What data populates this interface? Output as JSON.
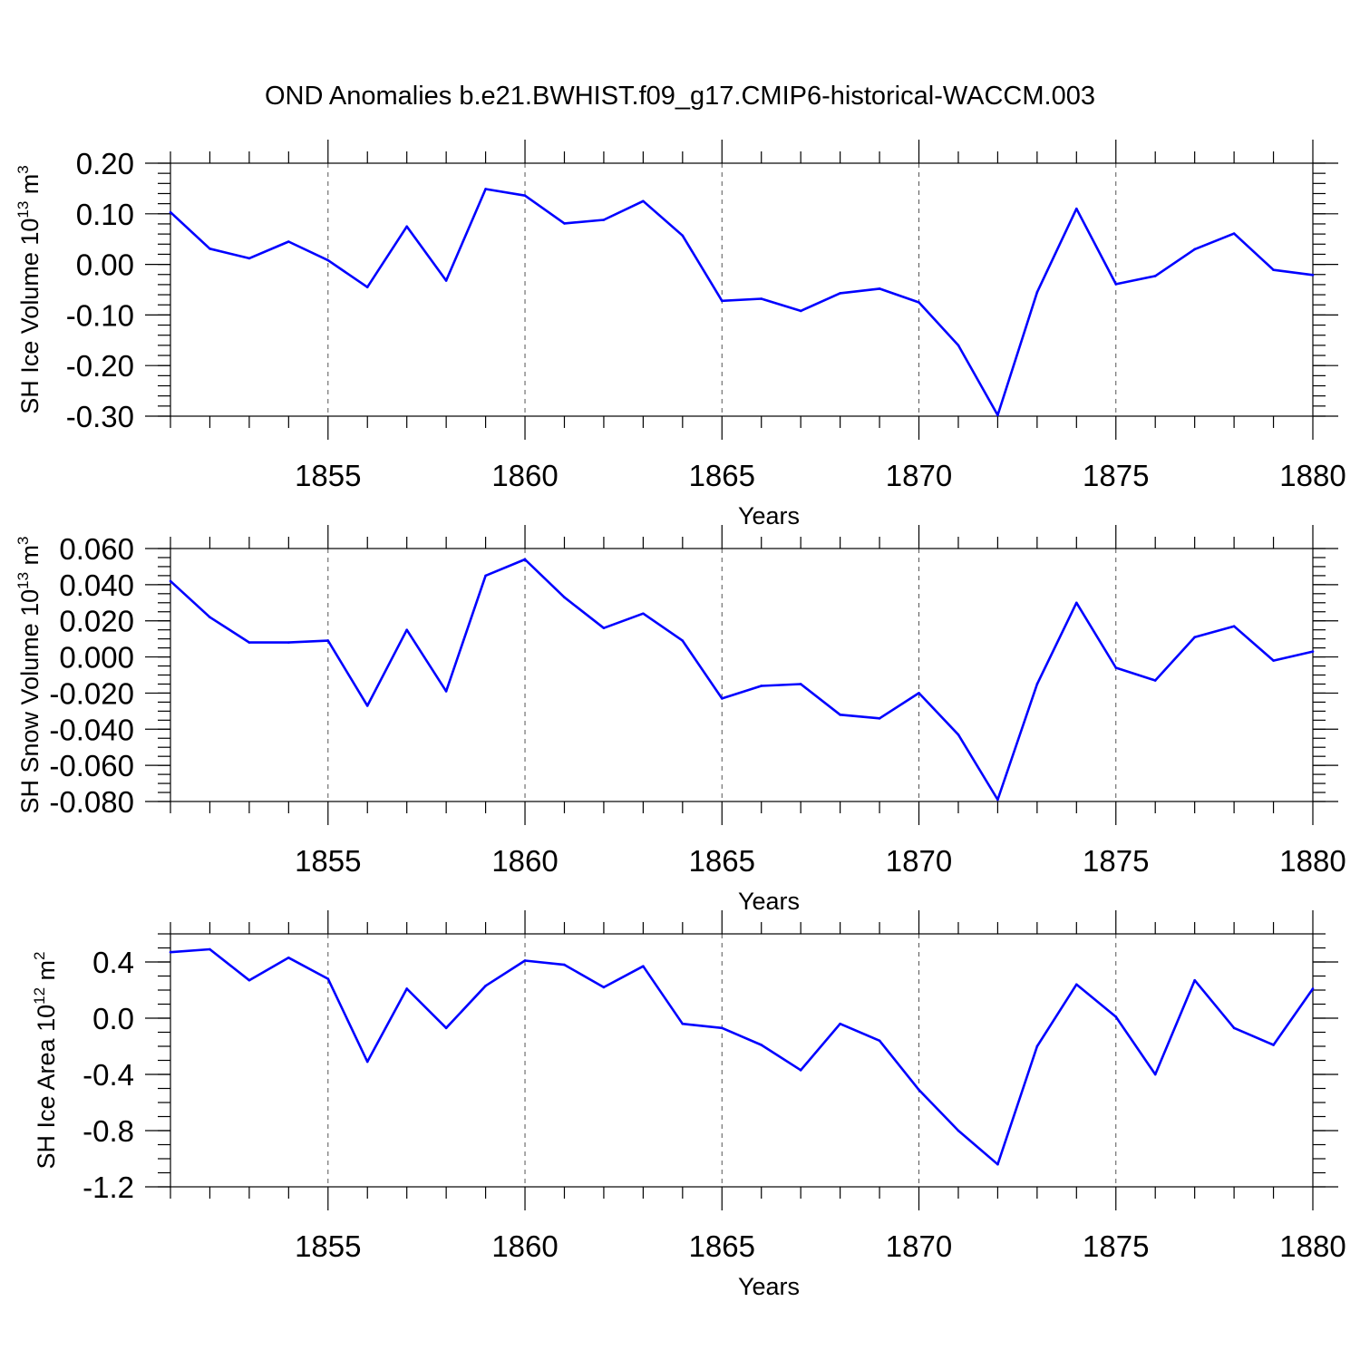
{
  "title": "OND Anomalies b.e21.BWHIST.f09_g17.CMIP6-historical-WACCM.003",
  "series_color": "#0000ff",
  "chart_data": [
    {
      "type": "line",
      "name": "ice-volume",
      "ylabel": {
        "main": "SH Ice Volume 10",
        "sup": "13",
        "unit": " m",
        "unit_sup": "3"
      },
      "xlabel": "Years",
      "xlim": [
        1851,
        1880
      ],
      "ylim": [
        -0.3,
        0.2
      ],
      "yticks": [
        0.2,
        0.1,
        0.0,
        -0.1,
        -0.2,
        -0.3
      ],
      "ytick_labels": [
        "0.20",
        "0.10",
        "0.00",
        "-0.10",
        "-0.20",
        "-0.30"
      ],
      "yminor_step": 0.02,
      "xticks": [
        1855,
        1860,
        1865,
        1870,
        1875,
        1880
      ],
      "xtick_labels": [
        "1855",
        "1860",
        "1865",
        "1870",
        "1875",
        "1880"
      ],
      "x": [
        1851,
        1852,
        1853,
        1854,
        1855,
        1856,
        1857,
        1858,
        1859,
        1860,
        1861,
        1862,
        1863,
        1864,
        1865,
        1866,
        1867,
        1868,
        1869,
        1870,
        1871,
        1872,
        1873,
        1874,
        1875,
        1876,
        1877,
        1878,
        1879,
        1880
      ],
      "values": [
        0.103,
        0.031,
        0.012,
        0.045,
        0.008,
        -0.045,
        0.075,
        -0.032,
        0.149,
        0.136,
        0.081,
        0.088,
        0.125,
        0.057,
        -0.072,
        -0.068,
        -0.092,
        -0.057,
        -0.048,
        -0.075,
        -0.16,
        -0.298,
        -0.055,
        0.11,
        -0.039,
        -0.023,
        0.03,
        0.061,
        -0.011,
        -0.021
      ]
    },
    {
      "type": "line",
      "name": "snow-volume",
      "ylabel": {
        "main": "SH Snow Volume 10",
        "sup": "13",
        "unit": " m",
        "unit_sup": "3"
      },
      "xlabel": "Years",
      "xlim": [
        1851,
        1880
      ],
      "ylim": [
        -0.08,
        0.06
      ],
      "yticks": [
        0.06,
        0.04,
        0.02,
        0.0,
        -0.02,
        -0.04,
        -0.06,
        -0.08
      ],
      "ytick_labels": [
        "0.060",
        "0.040",
        "0.020",
        "0.000",
        "-0.020",
        "-0.040",
        "-0.060",
        "-0.080"
      ],
      "yminor_step": 0.005,
      "xticks": [
        1855,
        1860,
        1865,
        1870,
        1875,
        1880
      ],
      "xtick_labels": [
        "1855",
        "1860",
        "1865",
        "1870",
        "1875",
        "1880"
      ],
      "x": [
        1851,
        1852,
        1853,
        1854,
        1855,
        1856,
        1857,
        1858,
        1859,
        1860,
        1861,
        1862,
        1863,
        1864,
        1865,
        1866,
        1867,
        1868,
        1869,
        1870,
        1871,
        1872,
        1873,
        1874,
        1875,
        1876,
        1877,
        1878,
        1879,
        1880
      ],
      "values": [
        0.042,
        0.022,
        0.008,
        0.008,
        0.009,
        -0.027,
        0.015,
        -0.019,
        0.045,
        0.054,
        0.033,
        0.016,
        0.024,
        0.009,
        -0.023,
        -0.016,
        -0.015,
        -0.032,
        -0.034,
        -0.02,
        -0.043,
        -0.079,
        -0.015,
        0.03,
        -0.006,
        -0.013,
        0.011,
        0.017,
        -0.002,
        0.003
      ]
    },
    {
      "type": "line",
      "name": "ice-area",
      "ylabel": {
        "main": "SH Ice Area 10",
        "sup": "12",
        "unit": " m",
        "unit_sup": "2"
      },
      "xlabel": "Years",
      "xlim": [
        1851,
        1880
      ],
      "ylim": [
        -1.2,
        0.6
      ],
      "yticks": [
        0.4,
        0.0,
        -0.4,
        -0.8,
        -1.2
      ],
      "ytick_labels": [
        "0.4",
        "0.0",
        "-0.4",
        "-0.8",
        "-1.2"
      ],
      "yminor_step": 0.1,
      "xticks": [
        1855,
        1860,
        1865,
        1870,
        1875,
        1880
      ],
      "xtick_labels": [
        "1855",
        "1860",
        "1865",
        "1870",
        "1875",
        "1880"
      ],
      "x": [
        1851,
        1852,
        1853,
        1854,
        1855,
        1856,
        1857,
        1858,
        1859,
        1860,
        1861,
        1862,
        1863,
        1864,
        1865,
        1866,
        1867,
        1868,
        1869,
        1870,
        1871,
        1872,
        1873,
        1874,
        1875,
        1876,
        1877,
        1878,
        1879,
        1880
      ],
      "values": [
        0.47,
        0.49,
        0.27,
        0.43,
        0.28,
        -0.31,
        0.21,
        -0.07,
        0.23,
        0.41,
        0.38,
        0.22,
        0.37,
        -0.04,
        -0.07,
        -0.19,
        -0.37,
        -0.04,
        -0.16,
        -0.51,
        -0.8,
        -1.04,
        -0.2,
        0.24,
        0.01,
        -0.4,
        0.27,
        -0.07,
        -0.19,
        0.21
      ]
    }
  ]
}
